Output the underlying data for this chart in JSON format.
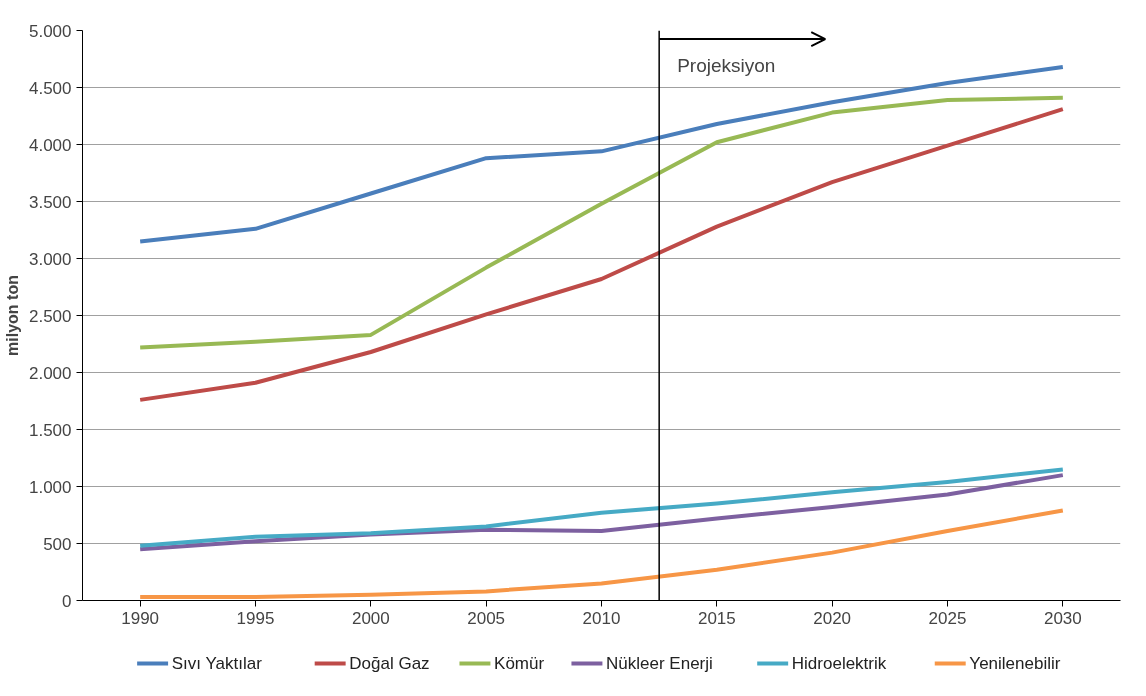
{
  "chart_data": {
    "type": "line",
    "ylabel": "milyon ton",
    "x": [
      1990,
      1995,
      2000,
      2005,
      2010,
      2015,
      2020,
      2025,
      2030
    ],
    "xlim": [
      1987.5,
      2032.5
    ],
    "xticks": [
      1990,
      1995,
      2000,
      2005,
      2010,
      2015,
      2020,
      2025,
      2030
    ],
    "ylim": [
      0,
      5000
    ],
    "yticks": [
      {
        "value": 0,
        "label": "0"
      },
      {
        "value": 500,
        "label": "500"
      },
      {
        "value": 1000,
        "label": "1.000"
      },
      {
        "value": 1500,
        "label": "1.500"
      },
      {
        "value": 2000,
        "label": "2.000"
      },
      {
        "value": 2500,
        "label": "2.500"
      },
      {
        "value": 3000,
        "label": "3.000"
      },
      {
        "value": 3500,
        "label": "3.500"
      },
      {
        "value": 4000,
        "label": "4.000"
      },
      {
        "value": 4500,
        "label": "4.500"
      },
      {
        "value": 5000,
        "label": "5.000"
      }
    ],
    "series": [
      {
        "name": "Sıvı Yaktılar",
        "color": "#4a7ebb",
        "values": [
          3150,
          3260,
          3570,
          3880,
          3940,
          4180,
          4370,
          4540,
          4680
        ]
      },
      {
        "name": "Doğal Gaz",
        "color": "#be4b48",
        "values": [
          1760,
          1910,
          2180,
          2510,
          2820,
          3280,
          3670,
          3990,
          4310
        ]
      },
      {
        "name": "Kömür",
        "color": "#98b954",
        "values": [
          2220,
          2270,
          2330,
          2920,
          3480,
          4020,
          4280,
          4390,
          4410
        ]
      },
      {
        "name": "Nükleer Enerji",
        "color": "#7d60a0",
        "values": [
          450,
          520,
          580,
          620,
          610,
          720,
          820,
          930,
          1100
        ]
      },
      {
        "name": "Hidroelektrik",
        "color": "#46aac5",
        "values": [
          480,
          560,
          590,
          650,
          770,
          850,
          950,
          1040,
          1150
        ]
      },
      {
        "name": "Yenilenebilir",
        "color": "#f79646",
        "values": [
          30,
          30,
          50,
          80,
          150,
          270,
          420,
          610,
          790
        ]
      }
    ],
    "ref_lines": [
      {
        "axis": "x",
        "value": 2012.5,
        "label": "Projeksiyon",
        "color": "#000000"
      }
    ],
    "grid": "y",
    "legend": "bottom",
    "marker": "none",
    "line_style": "solid"
  }
}
